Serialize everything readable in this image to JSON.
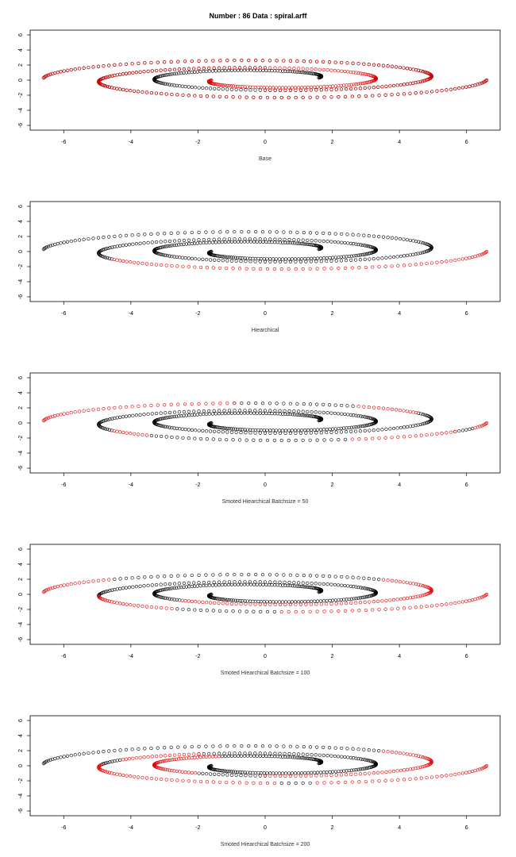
{
  "page": {
    "title": "Number : 86    Data : spiral.arff"
  },
  "colors": {
    "cluster_a": "#000000",
    "cluster_b": "#e00000",
    "frame": "#000000"
  },
  "chart_data": [
    {
      "type": "scatter",
      "xlabel": "Base",
      "xlim": [
        -7,
        7
      ],
      "ylim": [
        -6,
        6
      ],
      "xticks": [
        -6,
        -4,
        -2,
        0,
        2,
        4,
        6
      ],
      "yticks": [
        -6,
        -4,
        -2,
        0,
        2,
        4,
        6
      ],
      "marker": "open-circle",
      "series": [
        {
          "color": "#000000",
          "segments": [
            [
              "A",
              0.0,
              1.0
            ],
            [
              "B",
              0.5,
              1.0
            ]
          ]
        },
        {
          "color": "#e00000",
          "segments": [
            [
              "A",
              0.5,
              1.0
            ],
            [
              "B",
              0.0,
              1.0
            ]
          ]
        }
      ]
    },
    {
      "type": "scatter",
      "xlabel": "Hiearchical",
      "xlim": [
        -7,
        7
      ],
      "ylim": [
        -6,
        6
      ],
      "xticks": [
        -6,
        -4,
        -2,
        0,
        2,
        4,
        6
      ],
      "yticks": [
        -6,
        -4,
        -2,
        0,
        2,
        4,
        6
      ],
      "marker": "open-circle",
      "series": [
        {
          "color": "#000000",
          "segments": [
            [
              "A",
              0.0,
              1.0
            ],
            [
              "B",
              0.0,
              0.72
            ]
          ]
        },
        {
          "color": "#e00000",
          "segments": [
            [
              "B",
              0.72,
              1.0
            ]
          ]
        }
      ]
    },
    {
      "type": "scatter",
      "xlabel": "Smoted Hiearchical Batchsize =  50",
      "xlim": [
        -7,
        7
      ],
      "ylim": [
        -6,
        6
      ],
      "xticks": [
        -6,
        -4,
        -2,
        0,
        2,
        4,
        6
      ],
      "yticks": [
        -6,
        -4,
        -2,
        0,
        2,
        4,
        6
      ],
      "marker": "open-circle",
      "series": [
        {
          "color": "#000000",
          "segments": [
            [
              "A",
              0.0,
              0.72
            ],
            [
              "A",
              0.78,
              0.85
            ],
            [
              "B",
              0.0,
              0.72
            ],
            [
              "B",
              0.76,
              0.88
            ],
            [
              "B",
              0.95,
              0.97
            ]
          ]
        },
        {
          "color": "#e00000",
          "segments": [
            [
              "A",
              0.72,
              0.78
            ],
            [
              "A",
              0.85,
              1.0
            ],
            [
              "B",
              0.72,
              0.76
            ],
            [
              "B",
              0.88,
              0.95
            ],
            [
              "B",
              0.97,
              1.0
            ]
          ]
        }
      ]
    },
    {
      "type": "scatter",
      "xlabel": "Smoted Hiearchical Batchsize =  100",
      "xlim": [
        -7,
        7
      ],
      "ylim": [
        -6,
        6
      ],
      "xticks": [
        -6,
        -4,
        -2,
        0,
        2,
        4,
        6
      ],
      "yticks": [
        -6,
        -4,
        -2,
        0,
        2,
        4,
        6
      ],
      "marker": "open-circle",
      "series": [
        {
          "color": "#000000",
          "segments": [
            [
              "A",
              0.0,
              0.42
            ],
            [
              "A",
              0.76,
              0.92
            ],
            [
              "B",
              0.0,
              0.68
            ],
            [
              "B",
              0.78,
              0.84
            ]
          ]
        },
        {
          "color": "#e00000",
          "segments": [
            [
              "A",
              0.42,
              0.76
            ],
            [
              "A",
              0.92,
              1.0
            ],
            [
              "B",
              0.68,
              0.78
            ],
            [
              "B",
              0.84,
              1.0
            ]
          ]
        }
      ]
    },
    {
      "type": "scatter",
      "xlabel": "Smoted Hiearchical Batchsize =  200",
      "xlim": [
        -7,
        7
      ],
      "ylim": [
        -6,
        6
      ],
      "xticks": [
        -6,
        -4,
        -2,
        0,
        2,
        4,
        6
      ],
      "yticks": [
        -6,
        -4,
        -2,
        0,
        2,
        4,
        6
      ],
      "marker": "open-circle",
      "series": [
        {
          "color": "#000000",
          "segments": [
            [
              "A",
              0.0,
              0.22
            ],
            [
              "A",
              0.44,
              0.5
            ],
            [
              "A",
              0.76,
              1.0
            ],
            [
              "B",
              0.0,
              0.55
            ],
            [
              "B",
              0.62,
              0.66
            ],
            [
              "B",
              0.84,
              0.86
            ]
          ]
        },
        {
          "color": "#e00000",
          "segments": [
            [
              "A",
              0.22,
              0.44
            ],
            [
              "A",
              0.5,
              0.76
            ],
            [
              "B",
              0.55,
              0.62
            ],
            [
              "B",
              0.66,
              0.84
            ],
            [
              "B",
              0.86,
              1.0
            ]
          ]
        }
      ]
    }
  ]
}
